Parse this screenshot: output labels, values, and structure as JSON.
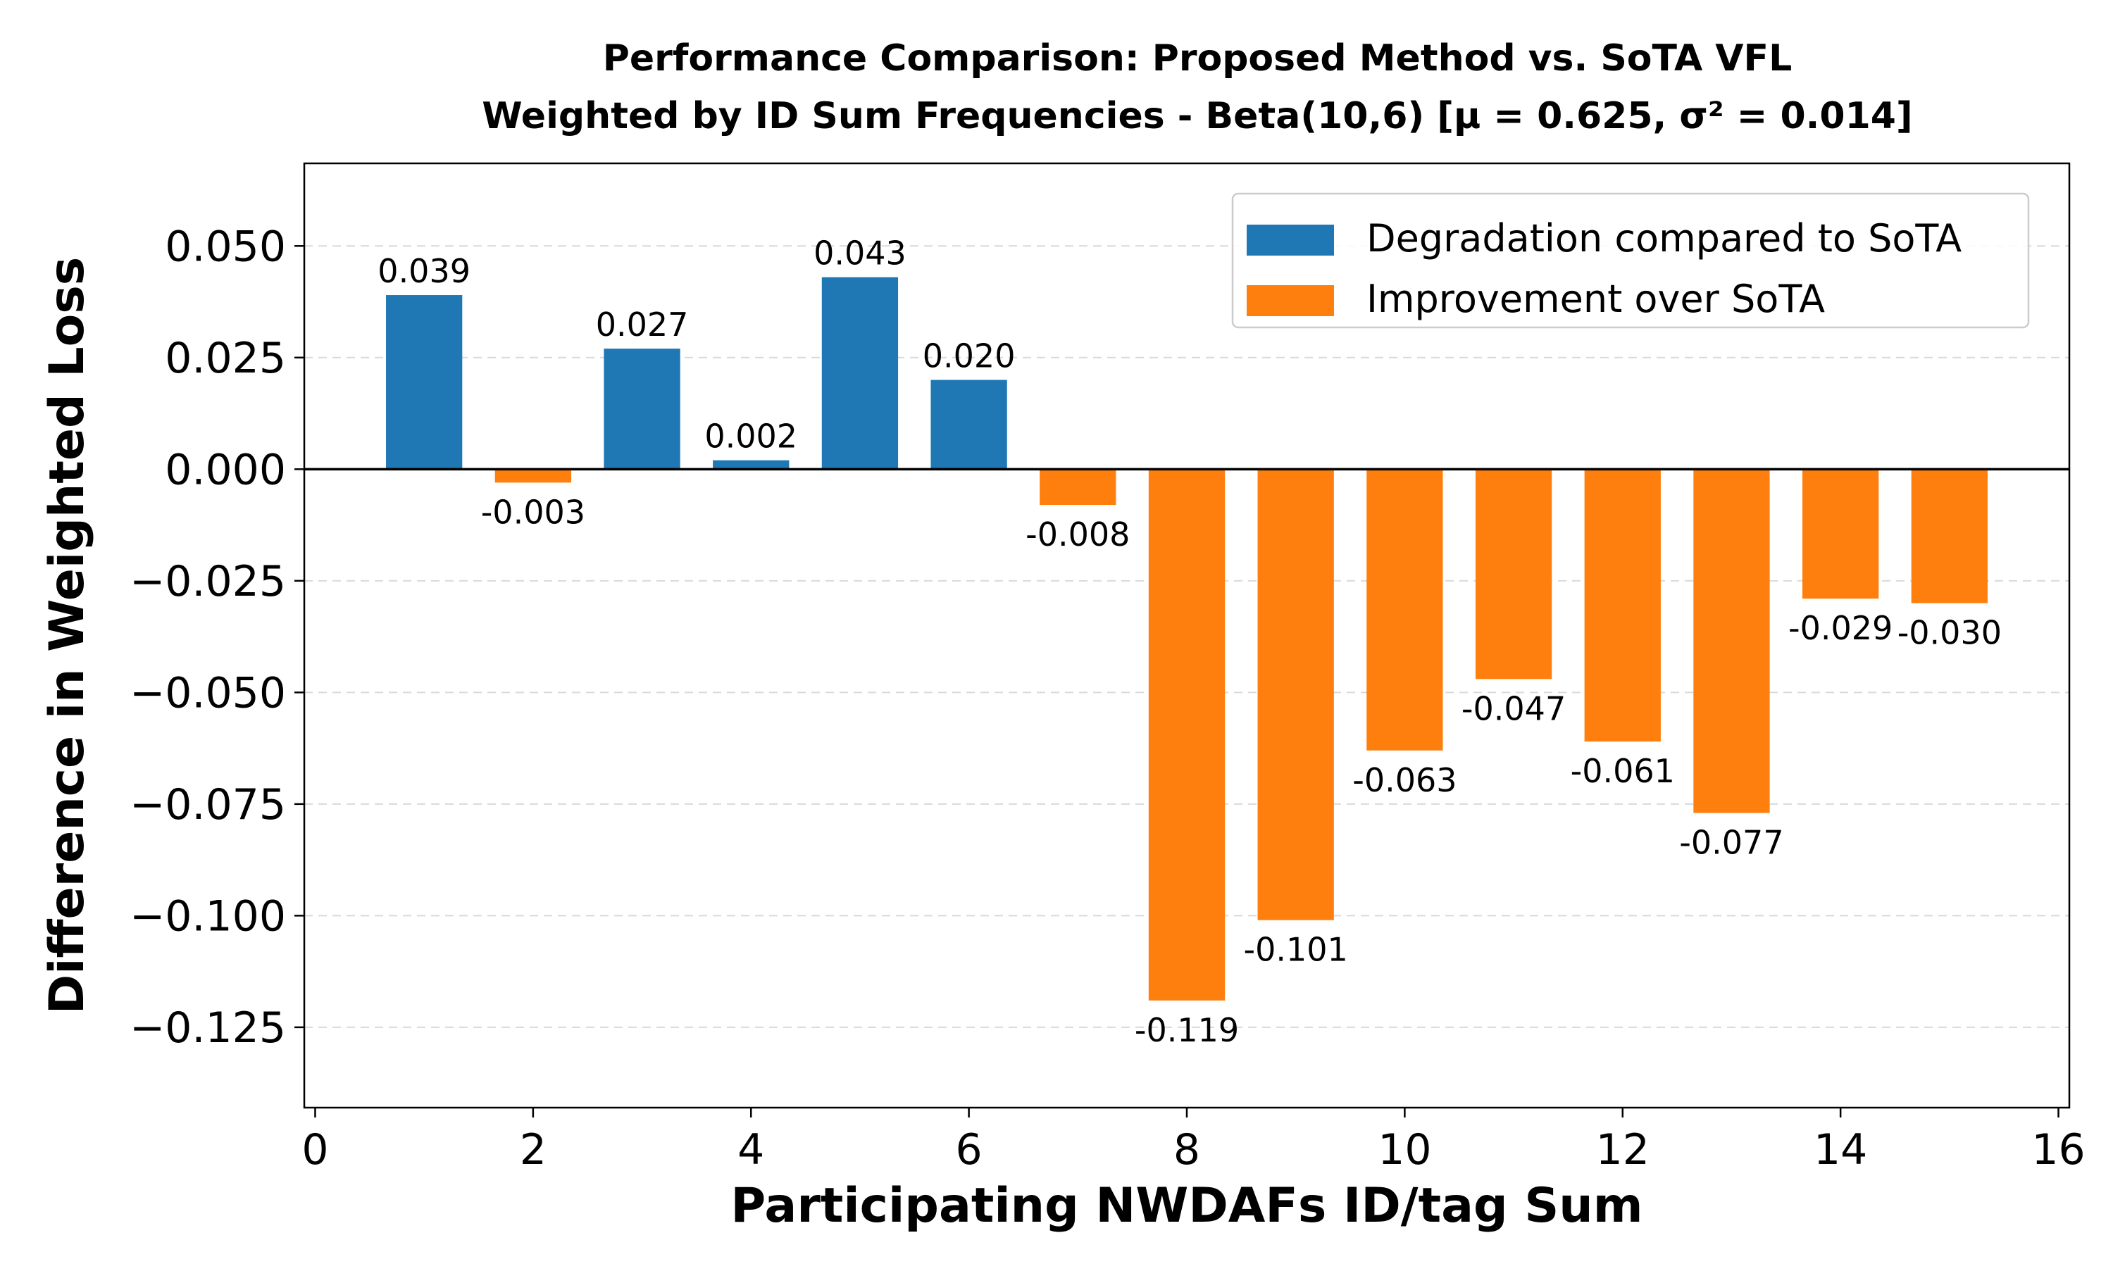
{
  "chart_data": {
    "type": "bar",
    "title_lines": [
      "Performance Comparison: Proposed Method vs. SoTA VFL",
      "Weighted by ID Sum Frequencies - Beta(10,6) [μ = 0.625, σ² = 0.014]"
    ],
    "xlabel": "Participating NWDAFs ID/tag Sum",
    "ylabel": "Difference in Weighted Loss",
    "xlim": [
      -0.1,
      16.1
    ],
    "ylim": [
      -0.143,
      0.0685
    ],
    "xticks": [
      0,
      2,
      4,
      6,
      8,
      10,
      12,
      14,
      16
    ],
    "xtick_labels": [
      "0",
      "2",
      "4",
      "6",
      "8",
      "10",
      "12",
      "14",
      "16"
    ],
    "yticks": [
      0.05,
      0.025,
      0.0,
      -0.025,
      -0.05,
      -0.075,
      -0.1,
      -0.125
    ],
    "ytick_labels": [
      "0.050",
      "0.025",
      "0.000",
      "−0.025",
      "−0.050",
      "−0.075",
      "−0.100",
      "−0.125"
    ],
    "grid": "horizontal dashed",
    "legend_position": "top-right",
    "colors": {
      "degradation": "#1f77b4",
      "improvement": "#ff7f0e"
    },
    "legend": [
      {
        "label": "Degradation compared to SoTA",
        "color": "#1f77b4"
      },
      {
        "label": "Improvement over SoTA",
        "color": "#ff7f0e"
      }
    ],
    "bars": [
      {
        "x": 1,
        "value": 0.039,
        "label": "0.039"
      },
      {
        "x": 2,
        "value": -0.003,
        "label": "-0.003"
      },
      {
        "x": 3,
        "value": 0.027,
        "label": "0.027"
      },
      {
        "x": 4,
        "value": 0.002,
        "label": "0.002"
      },
      {
        "x": 5,
        "value": 0.043,
        "label": "0.043"
      },
      {
        "x": 6,
        "value": 0.02,
        "label": "0.020"
      },
      {
        "x": 7,
        "value": -0.008,
        "label": "-0.008"
      },
      {
        "x": 8,
        "value": -0.119,
        "label": "-0.119"
      },
      {
        "x": 9,
        "value": -0.101,
        "label": "-0.101"
      },
      {
        "x": 10,
        "value": -0.063,
        "label": "-0.063"
      },
      {
        "x": 11,
        "value": -0.047,
        "label": "-0.047"
      },
      {
        "x": 12,
        "value": -0.061,
        "label": "-0.061"
      },
      {
        "x": 13,
        "value": -0.077,
        "label": "-0.077"
      },
      {
        "x": 14,
        "value": -0.029,
        "label": "-0.029"
      },
      {
        "x": 15,
        "value": -0.03,
        "label": "-0.030"
      }
    ]
  }
}
